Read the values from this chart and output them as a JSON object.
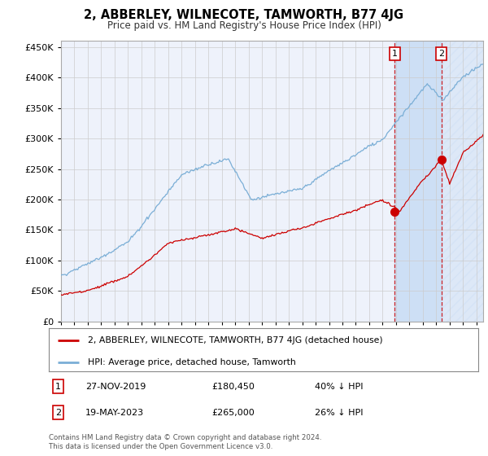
{
  "title": "2, ABBERLEY, WILNECOTE, TAMWORTH, B77 4JG",
  "subtitle": "Price paid vs. HM Land Registry's House Price Index (HPI)",
  "ylim": [
    0,
    460000
  ],
  "yticks": [
    0,
    50000,
    100000,
    150000,
    200000,
    250000,
    300000,
    350000,
    400000,
    450000
  ],
  "xlim_start": 1995.0,
  "xlim_end": 2026.5,
  "background_color": "#ffffff",
  "plot_bg_color": "#eef2fb",
  "grid_color": "#cccccc",
  "hpi_color": "#7aaed6",
  "price_color": "#cc0000",
  "highlight_bg": "#cddff5",
  "transaction_1": {
    "date_num": 2019.91,
    "price": 180450,
    "label": "1"
  },
  "transaction_2": {
    "date_num": 2023.38,
    "price": 265000,
    "label": "2"
  },
  "legend_house_label": "2, ABBERLEY, WILNECOTE, TAMWORTH, B77 4JG (detached house)",
  "legend_hpi_label": "HPI: Average price, detached house, Tamworth",
  "note1_label": "1",
  "note1_date": "27-NOV-2019",
  "note1_price": "£180,450",
  "note1_pct": "40% ↓ HPI",
  "note2_label": "2",
  "note2_date": "19-MAY-2023",
  "note2_price": "£265,000",
  "note2_pct": "26% ↓ HPI",
  "footer": "Contains HM Land Registry data © Crown copyright and database right 2024.\nThis data is licensed under the Open Government Licence v3.0."
}
